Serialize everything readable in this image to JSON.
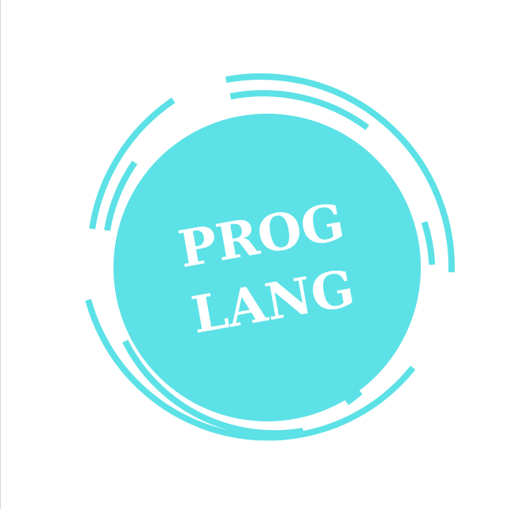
{
  "logo": {
    "line1": "PROG",
    "line2": "LANG",
    "accent_color": "#5ce1e6",
    "text_color": "#ffffff",
    "background_color": "#ffffff"
  }
}
